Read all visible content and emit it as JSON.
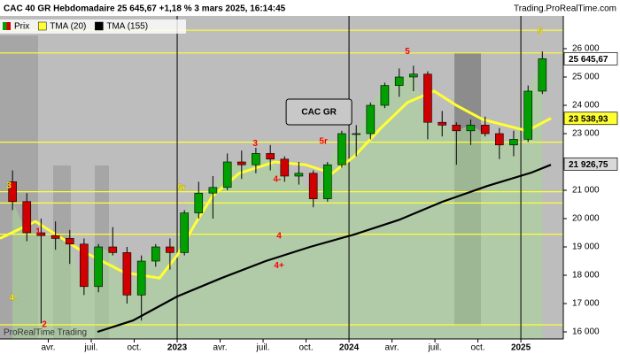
{
  "chart_data": {
    "type": "candlestick",
    "title": "CAC 40 GR Hebdomadaire 25 645,67 +1,18 % 3 mars 2025, 16:14:45",
    "source": "Trading.ProRealTime.com",
    "watermark": "ProRealTime Trading",
    "candles": {
      "name": "Prix",
      "up_color": "#00a000",
      "down_color": "#d00000",
      "x": [
        2022.042,
        2022.125,
        2022.208,
        2022.292,
        2022.375,
        2022.458,
        2022.542,
        2022.625,
        2022.708,
        2022.792,
        2022.875,
        2022.958,
        2023.042,
        2023.125,
        2023.208,
        2023.292,
        2023.375,
        2023.458,
        2023.542,
        2023.625,
        2023.708,
        2023.792,
        2023.875,
        2023.958,
        2024.042,
        2024.125,
        2024.208,
        2024.292,
        2024.375,
        2024.458,
        2024.542,
        2024.625,
        2024.708,
        2024.792,
        2024.875,
        2024.958,
        2025.042,
        2025.125
      ],
      "open": [
        21300,
        20600,
        19500,
        19400,
        19300,
        19100,
        17600,
        19000,
        18800,
        17300,
        18500,
        19000,
        18800,
        20200,
        20900,
        21100,
        22000,
        21900,
        22300,
        22100,
        21500,
        21600,
        20700,
        21900,
        23000,
        23000,
        24000,
        24700,
        25000,
        25100,
        23400,
        23300,
        23100,
        23300,
        23000,
        22600,
        22800,
        24500
      ],
      "high": [
        21700,
        20900,
        20000,
        19900,
        19600,
        19300,
        19100,
        19700,
        19000,
        18700,
        19100,
        19300,
        20300,
        21300,
        21500,
        22300,
        22400,
        22500,
        22600,
        22200,
        22000,
        21700,
        22000,
        23100,
        23300,
        24100,
        24800,
        25300,
        25400,
        25200,
        23800,
        23400,
        23500,
        23600,
        23200,
        23100,
        24700,
        25900
      ],
      "low": [
        20300,
        19200,
        16300,
        18900,
        18400,
        17300,
        17400,
        18700,
        17000,
        16400,
        18300,
        18200,
        18700,
        20000,
        20000,
        21000,
        21400,
        21600,
        21700,
        21300,
        21200,
        20400,
        20600,
        21800,
        22200,
        22800,
        23900,
        24300,
        24500,
        22800,
        22900,
        21900,
        22600,
        22900,
        22100,
        22200,
        22700,
        24400
      ],
      "close": [
        20600,
        19500,
        19400,
        19300,
        19100,
        17600,
        19000,
        18800,
        17300,
        18500,
        19000,
        18800,
        20200,
        20900,
        21100,
        22000,
        21900,
        22300,
        22100,
        21500,
        21600,
        20700,
        21900,
        23000,
        23000,
        24000,
        24700,
        25000,
        25100,
        23400,
        23300,
        23100,
        23300,
        23000,
        22600,
        22800,
        24500,
        25645.67
      ]
    },
    "series": [
      {
        "name": "TMA (20)",
        "color": "#ffff33",
        "x": [
          2021.969,
          2022.175,
          2022.433,
          2022.691,
          2022.897,
          2023.0,
          2023.103,
          2023.206,
          2023.361,
          2023.567,
          2023.747,
          2023.902,
          2024.031,
          2024.186,
          2024.34,
          2024.495,
          2024.624,
          2024.778,
          2024.907,
          2025.036,
          2025.175
        ],
        "values": [
          19300,
          19900,
          18900,
          18100,
          17900,
          18700,
          19800,
          20800,
          21600,
          22000,
          21900,
          21600,
          22200,
          23200,
          24100,
          24500,
          24000,
          23500,
          23300,
          23100,
          23540
        ]
      },
      {
        "name": "TMA (155)",
        "color": "#000000",
        "x": [
          2022.536,
          2022.742,
          2023.0,
          2023.258,
          2023.515,
          2023.773,
          2024.031,
          2024.289,
          2024.546,
          2024.804,
          2025.062,
          2025.175
        ],
        "values": [
          16000,
          16400,
          17250,
          17900,
          18500,
          19000,
          19440,
          19950,
          20600,
          21150,
          21625,
          21900
        ]
      }
    ],
    "levels": [
      26650,
      25850,
      22700,
      20950,
      20550,
      19450,
      16250
    ],
    "level_color": "#ffff33",
    "annotations": [
      {
        "text": "5",
        "x": 2024.34,
        "y": 25900,
        "color": "#ff0000",
        "size": "big"
      },
      {
        "text": "5",
        "x": 2025.113,
        "y": 26620,
        "color": "#ffff33",
        "size": "huge"
      },
      {
        "text": "3",
        "x": 2023.454,
        "y": 22650,
        "color": "#ff0000",
        "size": "big"
      },
      {
        "text": "5r",
        "x": 2023.851,
        "y": 22720,
        "color": "#ff0000",
        "size": "big"
      },
      {
        "text": "5r",
        "x": 2023.026,
        "y": 21090,
        "color": "#ffff33",
        "size": "huge"
      },
      {
        "text": "3",
        "x": 2022.021,
        "y": 21160,
        "color": "#ffff33",
        "size": "huge"
      },
      {
        "text": "4-",
        "x": 2023.582,
        "y": 21380,
        "color": "#ff0000",
        "size": "big"
      },
      {
        "text": "4",
        "x": 2023.593,
        "y": 19380,
        "color": "#ff0000",
        "size": "big"
      },
      {
        "text": "4+",
        "x": 2023.593,
        "y": 18340,
        "color": "#ff0000",
        "size": "big"
      },
      {
        "text": "1",
        "x": 2022.191,
        "y": 19530,
        "color": "#ff0000",
        "size": "big"
      },
      {
        "text": "2",
        "x": 2022.227,
        "y": 16250,
        "color": "#ff0000",
        "size": "big"
      },
      {
        "text": "4-",
        "x": 2022.046,
        "y": 17190,
        "color": "#ffff33",
        "size": "huge"
      }
    ],
    "box_label": {
      "text": "CAC GR",
      "x": 2023.825,
      "y": 23780
    },
    "last_labels": [
      {
        "label": "25 645,67",
        "value": 25645.67,
        "color": "#ffffff"
      },
      {
        "label": "23 538,93",
        "value": 23538.93,
        "color": "#ffff33"
      },
      {
        "label": "21 926,75",
        "value": 21926.75,
        "color": "#d9d9d9"
      }
    ],
    "xlim": [
      2021.969,
      2025.247
    ],
    "ylim": [
      15750,
      27156
    ],
    "xticks": [
      {
        "value": 2022.25,
        "label": "avr."
      },
      {
        "value": 2022.5,
        "label": "juil."
      },
      {
        "value": 2022.75,
        "label": "oct."
      },
      2023,
      {
        "value": 2023.25,
        "label": "avr."
      },
      {
        "value": 2023.5,
        "label": "juil."
      },
      {
        "value": 2023.75,
        "label": "oct."
      },
      2024,
      {
        "value": 2024.25,
        "label": "avr."
      },
      {
        "value": 2024.5,
        "label": "juil."
      },
      {
        "value": 2024.75,
        "label": "oct."
      },
      2025
    ],
    "yticks": [
      {
        "value": 26000,
        "label": "26 000"
      },
      {
        "value": 25000,
        "label": "25 000"
      },
      {
        "value": 24000,
        "label": "24 000"
      },
      {
        "value": 23000,
        "label": "23 000"
      },
      {
        "value": 22000,
        "label": "22 000"
      },
      {
        "value": 21000,
        "label": "21 000"
      },
      {
        "value": 20000,
        "label": "20 000"
      },
      {
        "value": 19000,
        "label": "19 000"
      },
      {
        "value": 18000,
        "label": "18 000"
      },
      {
        "value": 17000,
        "label": "17 000"
      },
      {
        "value": 16000,
        "label": "16 000"
      }
    ]
  }
}
